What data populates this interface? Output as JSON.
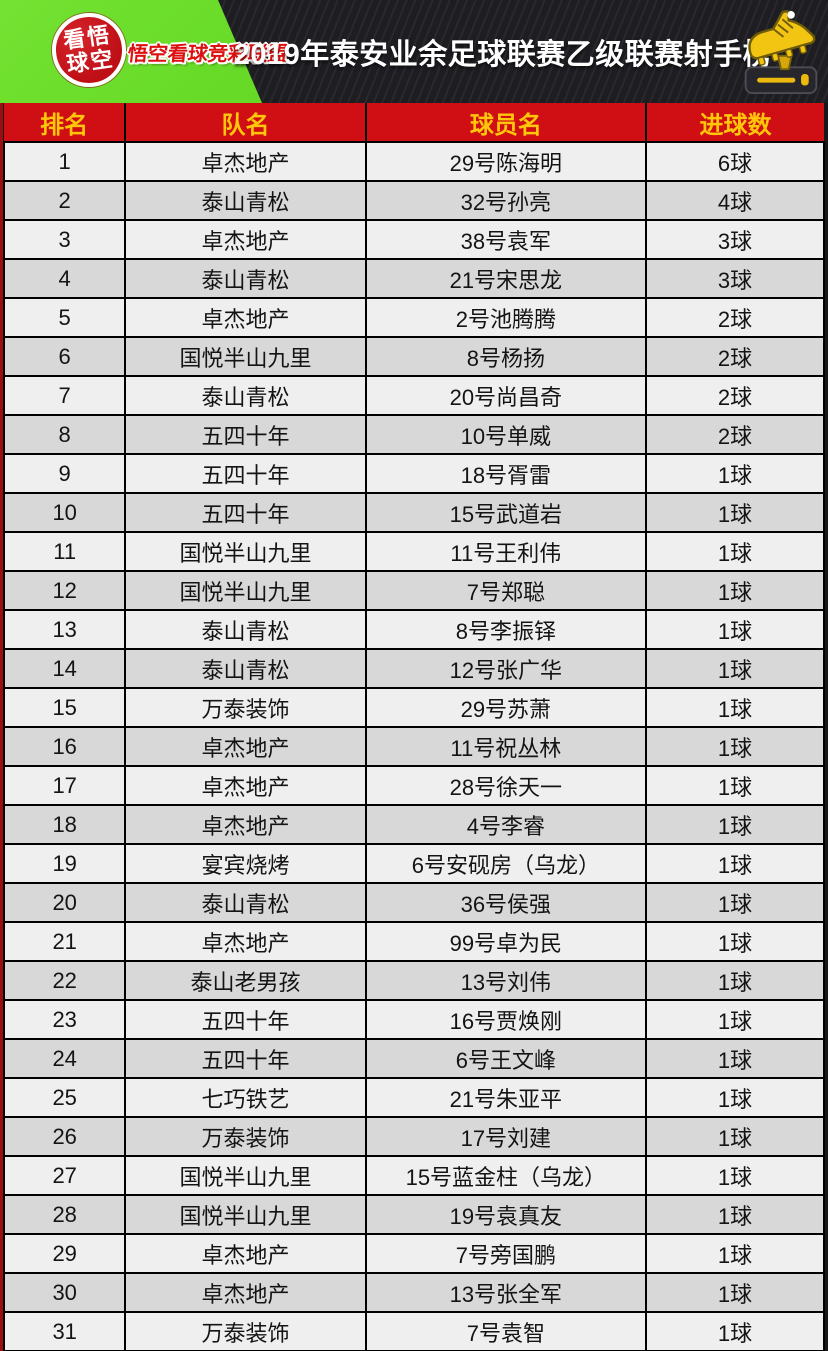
{
  "banner": {
    "badge": {
      "line1": "看悟",
      "line2": "球空"
    },
    "brand_text": "悟空看球竞彩联盟",
    "title": "2019年泰安业余足球联赛乙级联赛射手榜",
    "boot_icon": "golden-boot-trophy-icon"
  },
  "colors": {
    "brand_green": "#69da2a",
    "header_red": "#cf0f13",
    "header_text_yellow": "#ffc60a",
    "row_light": "#f0efef",
    "row_dark": "#d8d8d8",
    "boot_gold": "#f3c513",
    "banner_background": "#1d1d22"
  },
  "table": {
    "columns": [
      "排名",
      "队名",
      "球员名",
      "进球数"
    ],
    "rows": [
      {
        "rank": "1",
        "team": "卓杰地产",
        "player": "29号陈海明",
        "goals": "6球"
      },
      {
        "rank": "2",
        "team": "泰山青松",
        "player": "32号孙亮",
        "goals": "4球"
      },
      {
        "rank": "3",
        "team": "卓杰地产",
        "player": "38号袁军",
        "goals": "3球"
      },
      {
        "rank": "4",
        "team": "泰山青松",
        "player": "21号宋思龙",
        "goals": "3球"
      },
      {
        "rank": "5",
        "team": "卓杰地产",
        "player": "2号池腾腾",
        "goals": "2球"
      },
      {
        "rank": "6",
        "team": "国悦半山九里",
        "player": "8号杨扬",
        "goals": "2球"
      },
      {
        "rank": "7",
        "team": "泰山青松",
        "player": "20号尚昌奇",
        "goals": "2球"
      },
      {
        "rank": "8",
        "team": "五四十年",
        "player": "10号单威",
        "goals": "2球"
      },
      {
        "rank": "9",
        "team": "五四十年",
        "player": "18号胥雷",
        "goals": "1球"
      },
      {
        "rank": "10",
        "team": "五四十年",
        "player": "15号武道岩",
        "goals": "1球"
      },
      {
        "rank": "11",
        "team": "国悦半山九里",
        "player": "11号王利伟",
        "goals": "1球"
      },
      {
        "rank": "12",
        "team": "国悦半山九里",
        "player": "7号郑聪",
        "goals": "1球"
      },
      {
        "rank": "13",
        "team": "泰山青松",
        "player": "8号李振铎",
        "goals": "1球"
      },
      {
        "rank": "14",
        "team": "泰山青松",
        "player": "12号张广华",
        "goals": "1球"
      },
      {
        "rank": "15",
        "team": "万泰装饰",
        "player": "29号苏萧",
        "goals": "1球"
      },
      {
        "rank": "16",
        "team": "卓杰地产",
        "player": "11号祝丛林",
        "goals": "1球"
      },
      {
        "rank": "17",
        "team": "卓杰地产",
        "player": "28号徐天一",
        "goals": "1球"
      },
      {
        "rank": "18",
        "team": "卓杰地产",
        "player": "4号李睿",
        "goals": "1球"
      },
      {
        "rank": "19",
        "team": "宴宾烧烤",
        "player": "6号安砚房（乌龙）",
        "goals": "1球"
      },
      {
        "rank": "20",
        "team": "泰山青松",
        "player": "36号侯强",
        "goals": "1球"
      },
      {
        "rank": "21",
        "team": "卓杰地产",
        "player": "99号卓为民",
        "goals": "1球"
      },
      {
        "rank": "22",
        "team": "泰山老男孩",
        "player": "13号刘伟",
        "goals": "1球"
      },
      {
        "rank": "23",
        "team": "五四十年",
        "player": "16号贾焕刚",
        "goals": "1球"
      },
      {
        "rank": "24",
        "team": "五四十年",
        "player": "6号王文峰",
        "goals": "1球"
      },
      {
        "rank": "25",
        "team": "七巧铁艺",
        "player": "21号朱亚平",
        "goals": "1球"
      },
      {
        "rank": "26",
        "team": "万泰装饰",
        "player": "17号刘建",
        "goals": "1球"
      },
      {
        "rank": "27",
        "team": "国悦半山九里",
        "player": "15号蓝金柱（乌龙）",
        "goals": "1球"
      },
      {
        "rank": "28",
        "team": "国悦半山九里",
        "player": "19号袁真友",
        "goals": "1球"
      },
      {
        "rank": "29",
        "team": "卓杰地产",
        "player": "7号旁国鹏",
        "goals": "1球"
      },
      {
        "rank": "30",
        "team": "卓杰地产",
        "player": "13号张全军",
        "goals": "1球"
      },
      {
        "rank": "31",
        "team": "万泰装饰",
        "player": "7号袁智",
        "goals": "1球"
      }
    ]
  }
}
